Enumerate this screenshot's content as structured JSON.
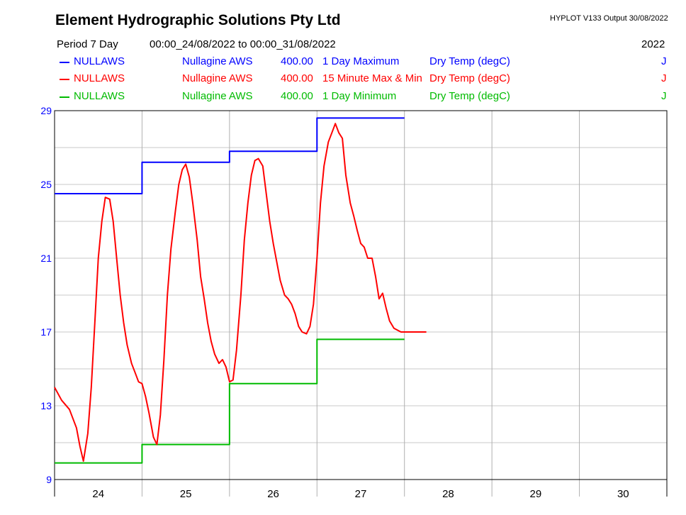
{
  "header": {
    "title": "Element Hydrographic Solutions Pty Ltd",
    "version": "HYPLOT V133  Output 30/08/2022",
    "period_label": "Period   7 Day",
    "period_range": "00:00_24/08/2022 to 00:00_31/08/2022",
    "year": "2022"
  },
  "legend": [
    {
      "site": "NULLAWS",
      "name": "Nullagine AWS",
      "var": "400.00",
      "stat": "1 Day Maximum",
      "param": "Dry Temp (degC)",
      "flag": "J",
      "color": "#0000ff"
    },
    {
      "site": "NULLAWS",
      "name": "Nullagine AWS",
      "var": "400.00",
      "stat": "15 Minute Max & Min",
      "param": "Dry Temp (degC)",
      "flag": "J",
      "color": "#ff0000"
    },
    {
      "site": "NULLAWS",
      "name": "Nullagine AWS",
      "var": "400.00",
      "stat": "1 Day Minimum",
      "param": "Dry Temp (degC)",
      "flag": "J",
      "color": "#00bb00"
    }
  ],
  "chart_data": {
    "type": "line",
    "ylim": [
      9,
      29
    ],
    "xlim": [
      24,
      31
    ],
    "yticks": [
      "29",
      "25",
      "21",
      "17",
      "13",
      "9"
    ],
    "ytick_values": [
      29,
      25,
      21,
      17,
      13,
      9
    ],
    "xtick_labels": [
      "24",
      "25",
      "26",
      "27",
      "28",
      "29",
      "30"
    ],
    "grid": true,
    "series": [
      {
        "name": "1 Day Maximum",
        "color": "#0000ff",
        "step": true,
        "x": [
          24,
          25,
          26,
          27,
          28
        ],
        "values": [
          24.5,
          26.2,
          26.8,
          28.6,
          28.6
        ]
      },
      {
        "name": "1 Day Minimum",
        "color": "#00bb00",
        "step": true,
        "x": [
          24,
          25,
          26,
          27,
          28
        ],
        "values": [
          9.9,
          10.9,
          14.2,
          16.6,
          16.6
        ]
      },
      {
        "name": "15 Minute Max & Min",
        "color": "#ff0000",
        "step": false,
        "x": [
          24.0,
          24.08,
          24.17,
          24.25,
          24.29,
          24.33,
          24.38,
          24.42,
          24.46,
          24.5,
          24.54,
          24.58,
          24.63,
          24.67,
          24.71,
          24.75,
          24.79,
          24.83,
          24.88,
          24.92,
          24.96,
          25.0,
          25.04,
          25.08,
          25.13,
          25.17,
          25.21,
          25.25,
          25.29,
          25.33,
          25.38,
          25.42,
          25.46,
          25.5,
          25.54,
          25.58,
          25.63,
          25.67,
          25.71,
          25.75,
          25.79,
          25.83,
          25.88,
          25.92,
          25.96,
          26.0,
          26.04,
          26.08,
          26.13,
          26.17,
          26.21,
          26.25,
          26.29,
          26.33,
          26.38,
          26.42,
          26.46,
          26.5,
          26.54,
          26.58,
          26.63,
          26.67,
          26.71,
          26.75,
          26.79,
          26.83,
          26.88,
          26.92,
          26.96,
          27.0,
          27.04,
          27.08,
          27.13,
          27.17,
          27.21,
          27.25,
          27.29,
          27.33,
          27.38,
          27.42,
          27.46,
          27.5,
          27.54,
          27.58,
          27.63,
          27.67,
          27.71,
          27.75,
          27.79,
          27.83,
          27.88,
          27.92,
          27.96,
          28.0,
          28.04,
          28.08,
          28.13,
          28.17,
          28.21,
          28.25
        ],
        "values": [
          14.0,
          13.3,
          12.8,
          11.8,
          10.8,
          10.0,
          11.5,
          14.0,
          17.5,
          21.0,
          23.0,
          24.3,
          24.2,
          23.0,
          21.0,
          19.0,
          17.5,
          16.3,
          15.3,
          14.8,
          14.3,
          14.2,
          13.5,
          12.6,
          11.3,
          10.9,
          12.5,
          15.5,
          19.0,
          21.5,
          23.5,
          25.0,
          25.8,
          26.1,
          25.4,
          24.0,
          22.0,
          20.0,
          18.8,
          17.5,
          16.5,
          15.8,
          15.3,
          15.5,
          15.1,
          14.3,
          14.4,
          16.0,
          19.0,
          22.0,
          24.0,
          25.5,
          26.3,
          26.4,
          26.0,
          24.5,
          23.0,
          21.8,
          20.8,
          19.8,
          19.0,
          18.8,
          18.5,
          18.0,
          17.3,
          17.0,
          16.9,
          17.3,
          18.5,
          21.0,
          24.0,
          26.0,
          27.3,
          27.8,
          28.3,
          27.8,
          27.5,
          25.5,
          24.0,
          23.3,
          22.5,
          21.8,
          21.6,
          21.0,
          21.0,
          20.0,
          18.8,
          19.1,
          18.3,
          17.6,
          17.2,
          17.1,
          17.0,
          17.0,
          17.0,
          17.0,
          17.0,
          17.0,
          17.0,
          17.0
        ]
      }
    ]
  }
}
